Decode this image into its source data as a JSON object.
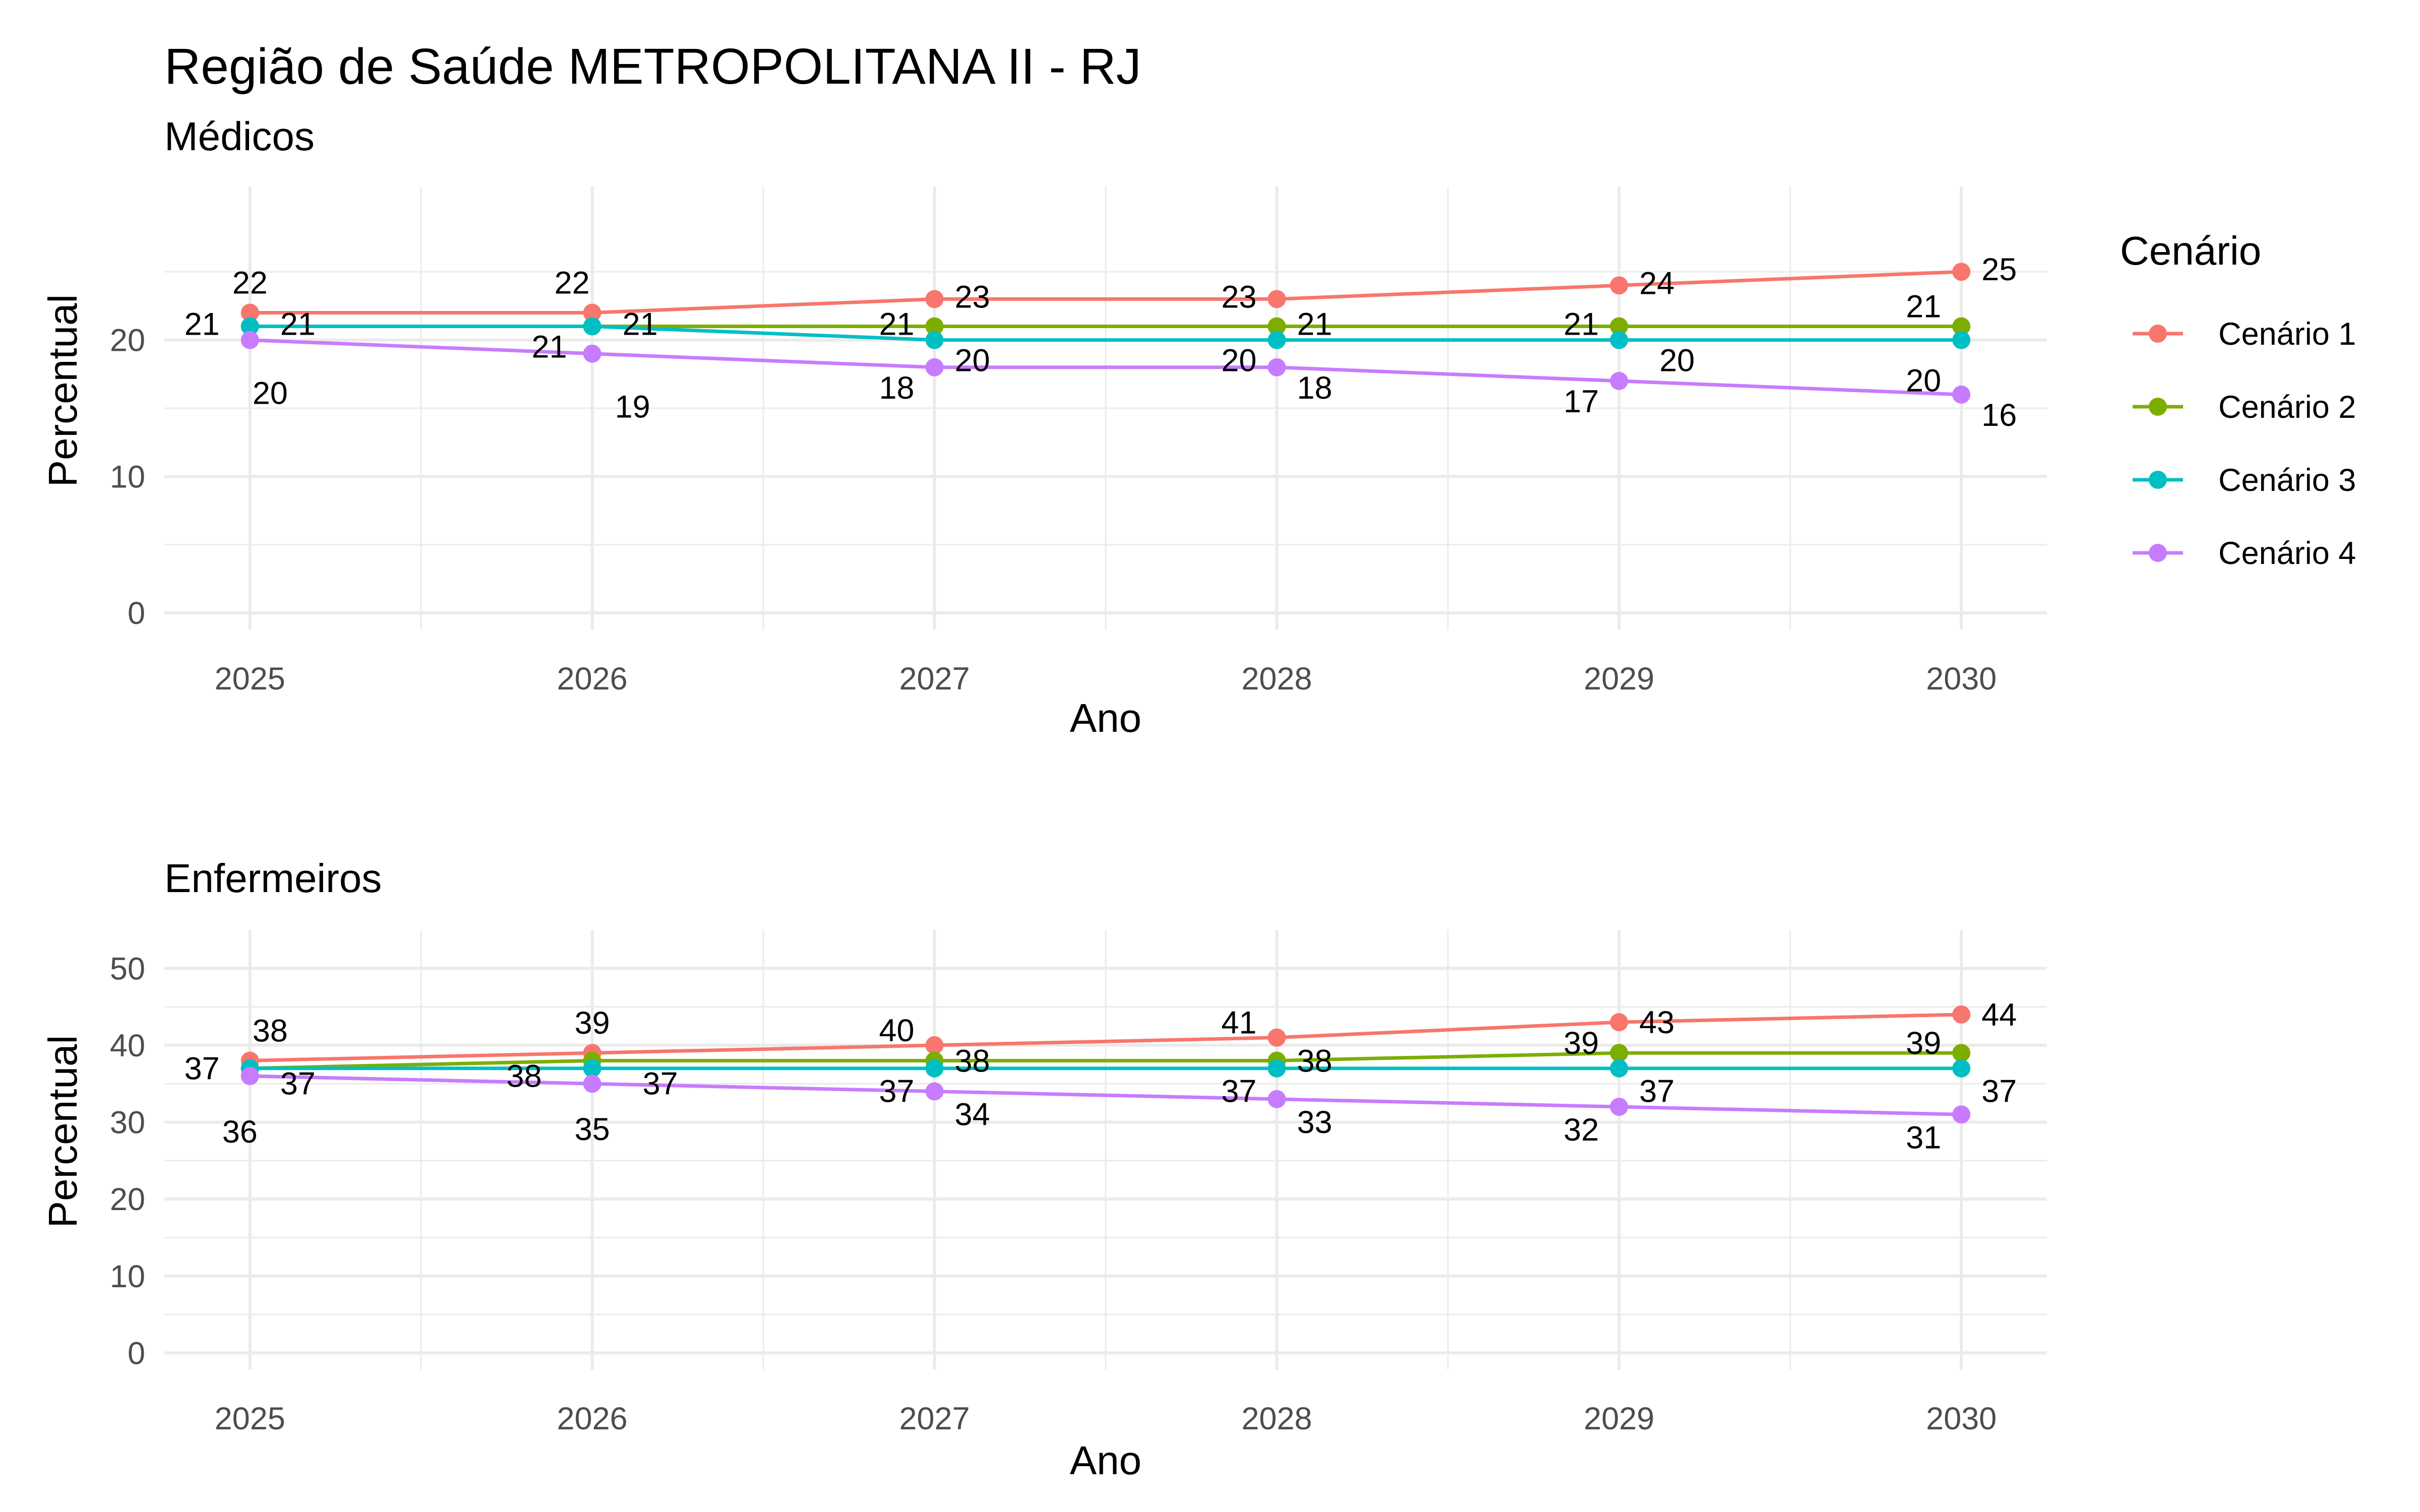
{
  "title": "Região de Saúde METROPOLITANA II - RJ",
  "legend": {
    "title": "Cenário",
    "items": [
      {
        "label": "Cenário 1",
        "color": "#F8766D"
      },
      {
        "label": "Cenário 2",
        "color": "#7CAE00"
      },
      {
        "label": "Cenário 3",
        "color": "#00BFC4"
      },
      {
        "label": "Cenário 4",
        "color": "#C77CFF"
      }
    ]
  },
  "chart_data": [
    {
      "type": "line",
      "subtitle": "Médicos",
      "xlabel": "Ano",
      "ylabel": "Percentual",
      "x": [
        2025,
        2026,
        2027,
        2028,
        2029,
        2030
      ],
      "xlim": [
        2024.75,
        2030.25
      ],
      "ylim": [
        -1.25,
        31.25
      ],
      "yticks": [
        0,
        10,
        20
      ],
      "grid": true,
      "legend_position": "right",
      "series": [
        {
          "name": "Cenário 1",
          "color": "#F8766D",
          "values": [
            22,
            22,
            23,
            23,
            24,
            25
          ]
        },
        {
          "name": "Cenário 2",
          "color": "#7CAE00",
          "values": [
            21,
            21,
            21,
            21,
            21,
            21
          ]
        },
        {
          "name": "Cenário 3",
          "color": "#00BFC4",
          "values": [
            21,
            21,
            20,
            20,
            20,
            20
          ]
        },
        {
          "name": "Cenário 4",
          "color": "#C77CFF",
          "values": [
            20,
            19,
            18,
            18,
            17,
            16
          ]
        }
      ]
    },
    {
      "type": "line",
      "subtitle": "Enfermeiros",
      "xlabel": "Ano",
      "ylabel": "Percentual",
      "x": [
        2025,
        2026,
        2027,
        2028,
        2029,
        2030
      ],
      "xlim": [
        2024.75,
        2030.25
      ],
      "ylim": [
        -2.2,
        55
      ],
      "yticks": [
        0,
        10,
        20,
        30,
        40,
        50
      ],
      "grid": true,
      "legend_position": "right",
      "series": [
        {
          "name": "Cenário 1",
          "color": "#F8766D",
          "values": [
            38,
            39,
            40,
            41,
            43,
            44
          ]
        },
        {
          "name": "Cenário 2",
          "color": "#7CAE00",
          "values": [
            37,
            38,
            38,
            38,
            39,
            39
          ]
        },
        {
          "name": "Cenário 3",
          "color": "#00BFC4",
          "values": [
            37,
            37,
            37,
            37,
            37,
            37
          ]
        },
        {
          "name": "Cenário 4",
          "color": "#C77CFF",
          "values": [
            36,
            35,
            34,
            33,
            32,
            31
          ]
        }
      ]
    }
  ]
}
